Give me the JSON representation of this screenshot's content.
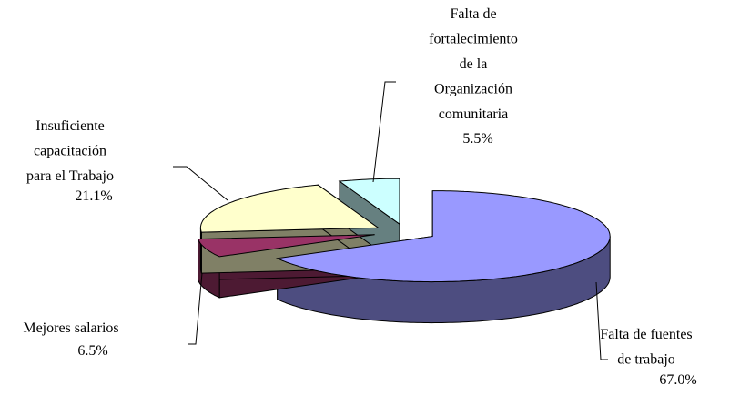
{
  "chart_data": {
    "type": "pie",
    "pie_3d": true,
    "exploded": true,
    "categories": [
      "Falta de fuentes\nde trabajo",
      "Mejores salarios",
      "Insuficiente\ncapacitación\npara el Trabajo",
      "Falta de\nfortalecimiento\nde la\nOrganización\ncomunitaria"
    ],
    "values": [
      67.0,
      6.5,
      21.1,
      5.5
    ],
    "value_labels": [
      "67.0%",
      "6.5%",
      "21.1%",
      "5.5%"
    ],
    "colors": [
      "#9999ff",
      "#993366",
      "#ffffcc",
      "#ccffff"
    ]
  }
}
